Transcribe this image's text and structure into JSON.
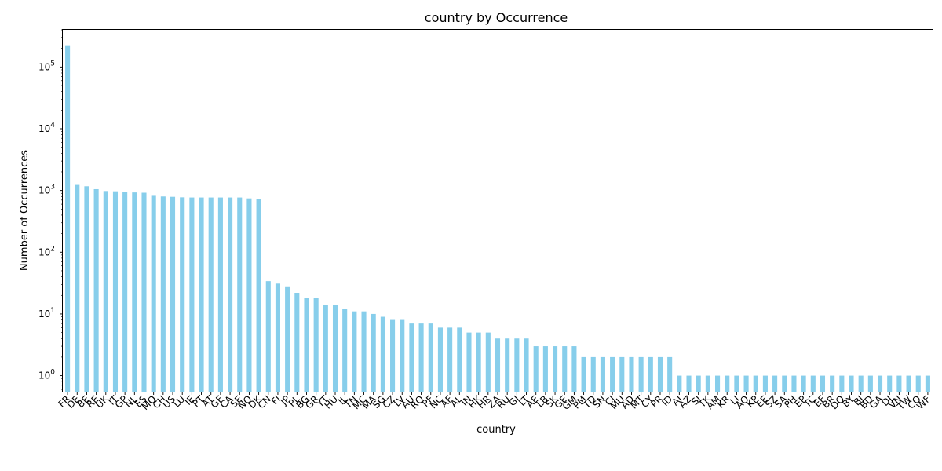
{
  "chart_data": {
    "type": "bar",
    "title": "country by Occurrence",
    "xlabel": "country",
    "ylabel": "Number of Occurrences",
    "yscale": "log",
    "ylim": [
      0.55,
      400000
    ],
    "y_ticks": [
      {
        "value": 1,
        "base": "10",
        "exp": "0"
      },
      {
        "value": 10,
        "base": "10",
        "exp": "1"
      },
      {
        "value": 100,
        "base": "10",
        "exp": "2"
      },
      {
        "value": 1000,
        "base": "10",
        "exp": "3"
      },
      {
        "value": 10000,
        "base": "10",
        "exp": "4"
      },
      {
        "value": 100000,
        "base": "10",
        "exp": "5"
      }
    ],
    "bar_color": "#87ceeb",
    "grid": false,
    "categories": [
      "FR",
      "DE",
      "BE",
      "RE",
      "UK",
      "IT",
      "GP",
      "NL",
      "ES",
      "MQ",
      "CH",
      "US",
      "LU",
      "IE",
      "PT",
      "AT",
      "GF",
      "CA",
      "SE",
      "NO",
      "DK",
      "CN",
      "FI",
      "JP",
      "PL",
      "BG",
      "GR",
      "YT",
      "HU",
      "IL",
      "TN",
      "MC",
      "MA",
      "SG",
      "CZ",
      "LV",
      "AU",
      "RO",
      "PF",
      "NC",
      "AF",
      "AL",
      "IN",
      "HK",
      "HR",
      "ZA",
      "RU",
      "GI",
      "LT",
      "AE",
      "LB",
      "SK",
      "GE",
      "GM",
      "PM",
      "TD",
      "SN",
      "CI",
      "MU",
      "AD",
      "MT",
      "CY",
      "PR",
      "ID",
      "AI",
      "AZ",
      "SI",
      "TK",
      "AM",
      "KR",
      "LI",
      "AO",
      "KP",
      "EE",
      "SZ",
      "SA",
      "PH",
      "EP",
      "TC",
      "EF",
      "BR",
      "DO",
      "BY",
      "BJ",
      "BD",
      "GA",
      "DJ",
      "VN",
      "TW",
      "CO",
      "WF"
    ],
    "values": [
      225000,
      1230,
      1170,
      1050,
      980,
      970,
      940,
      930,
      920,
      820,
      800,
      790,
      775,
      770,
      770,
      770,
      770,
      770,
      770,
      745,
      720,
      34,
      31,
      28,
      22,
      18,
      18,
      14,
      14,
      12,
      11,
      11,
      10,
      9,
      8,
      8,
      7,
      7,
      7,
      6,
      6,
      6,
      5,
      5,
      5,
      4,
      4,
      4,
      4,
      3,
      3,
      3,
      3,
      3,
      2,
      2,
      2,
      2,
      2,
      2,
      2,
      2,
      2,
      2,
      1,
      1,
      1,
      1,
      1,
      1,
      1,
      1,
      1,
      1,
      1,
      1,
      1,
      1,
      1,
      1,
      1,
      1,
      1,
      1,
      1,
      1,
      1,
      1,
      1,
      1,
      1
    ]
  }
}
